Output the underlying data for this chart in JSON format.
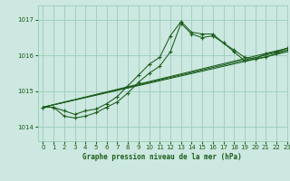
{
  "bg_color": "#cce8e0",
  "grid_color": "#99ccbb",
  "line_color": "#1a5c1a",
  "title": "Graphe pression niveau de la mer (hPa)",
  "xlim": [
    -0.5,
    23
  ],
  "ylim": [
    1013.6,
    1017.4
  ],
  "yticks": [
    1014,
    1015,
    1016,
    1017
  ],
  "xticks": [
    0,
    1,
    2,
    3,
    4,
    5,
    6,
    7,
    8,
    9,
    10,
    11,
    12,
    13,
    14,
    15,
    16,
    17,
    18,
    19,
    20,
    21,
    22,
    23
  ],
  "series_main": [
    {
      "x": [
        0,
        1,
        2,
        3,
        4,
        5,
        6,
        7,
        8,
        9,
        10,
        11,
        12,
        13,
        14,
        15,
        16,
        17,
        18,
        19,
        20,
        21,
        22,
        23
      ],
      "y": [
        1014.55,
        1014.55,
        1014.45,
        1014.35,
        1014.45,
        1014.5,
        1014.65,
        1014.85,
        1015.15,
        1015.45,
        1015.75,
        1015.95,
        1016.55,
        1016.95,
        1016.65,
        1016.6,
        1016.6,
        1016.35,
        1016.15,
        1015.95,
        1015.9,
        1016.05,
        1016.1,
        1016.2
      ]
    },
    {
      "x": [
        0,
        1,
        2,
        3,
        4,
        5,
        6,
        7,
        8,
        9,
        10,
        11,
        12,
        13,
        14,
        15,
        16,
        17,
        18,
        19,
        20,
        21,
        22,
        23
      ],
      "y": [
        1014.55,
        1014.55,
        1014.3,
        1014.25,
        1014.3,
        1014.4,
        1014.55,
        1014.7,
        1014.95,
        1015.25,
        1015.5,
        1015.7,
        1016.1,
        1016.9,
        1016.6,
        1016.5,
        1016.55,
        1016.35,
        1016.1,
        1015.85,
        1015.9,
        1015.95,
        1016.05,
        1016.15
      ]
    }
  ],
  "series_linear": [
    {
      "x": [
        0,
        23
      ],
      "y": [
        1014.55,
        1016.15
      ]
    },
    {
      "x": [
        0,
        23
      ],
      "y": [
        1014.55,
        1016.2
      ]
    },
    {
      "x": [
        0,
        23
      ],
      "y": [
        1014.55,
        1016.1
      ]
    }
  ]
}
